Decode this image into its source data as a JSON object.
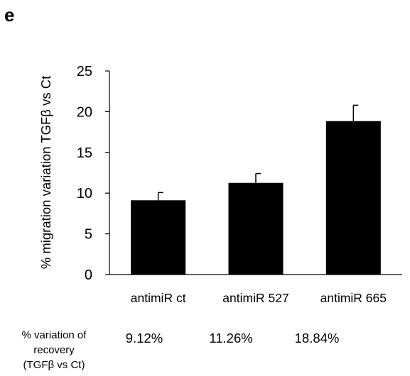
{
  "panel_label": "e",
  "chart_data": {
    "type": "bar",
    "categories": [
      "antimiR ct",
      "antimiR 527",
      "antimiR 665"
    ],
    "values": [
      9.12,
      11.26,
      18.84
    ],
    "errors": [
      0.95,
      1.15,
      1.95
    ],
    "ylabel": "% migration variation TGFβ vs Ct",
    "ylim": [
      0,
      25
    ],
    "yticks": [
      0,
      5,
      10,
      15,
      20,
      25
    ],
    "bar_color": "#000000",
    "grid": false
  },
  "table": {
    "row_title_lines": [
      "% variation of",
      "recovery",
      "(TGFβ vs Ct)"
    ],
    "values": [
      "9.12%",
      "11.26%",
      "18.84%"
    ]
  }
}
